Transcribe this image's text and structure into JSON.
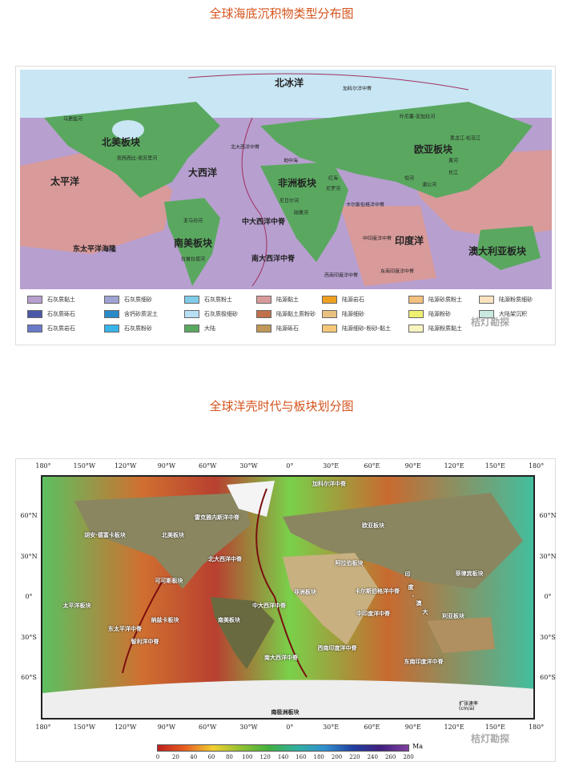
{
  "titles": {
    "map1": "全球海底沉积物类型分布图",
    "map2": "全球洋壳时代与板块划分图"
  },
  "watermark": "桔灯勘探",
  "map1": {
    "labels": {
      "arctic": "北冰洋",
      "gakkel": "加科尔洋中脊",
      "na_plate": "北美板块",
      "pacific": "太平洋",
      "atlantic": "大西洋",
      "n_atl_ridge": "北大西洋中脊",
      "africa": "非洲板块",
      "eurasia": "欧亚板块",
      "med": "地中海",
      "red_sea": "红海",
      "mid_atl": "中大西洋中脊",
      "sa_plate": "南美板块",
      "epr": "东太平洋海隆",
      "s_atl": "南大西洋中脊",
      "indian": "印度洋",
      "aus": "澳大利亚板块",
      "mackenzie": "马更些河",
      "mississippi": "密西西比-密苏里河",
      "amazon": "亚马孙河",
      "laplata": "拉普拉塔河",
      "nile": "尼罗河",
      "niger": "尼日尔河",
      "congo": "刚果河",
      "yenisei": "叶尼塞-安加拉河",
      "amur": "黑龙江-松花江",
      "yellow": "黄河",
      "yangtze": "长江",
      "ganges": "恒河",
      "mekong": "湄公河",
      "carlsberg": "卡尔斯伯格洋中脊",
      "cir": "中印度洋中脊",
      "seir": "东南印度洋中脊",
      "swir": "西南印度洋中脊"
    },
    "legend": [
      {
        "label": "石灰质黏土",
        "color": "#b79fcf"
      },
      {
        "label": "石灰质细砂",
        "color": "#9fa3d3"
      },
      {
        "label": "石灰质粉土",
        "color": "#7fcbe8"
      },
      {
        "label": "陆源黏土",
        "color": "#d99a9a"
      },
      {
        "label": "陆源岩石",
        "color": "#f0a020"
      },
      {
        "label": "陆源砂质粉土",
        "color": "#f4c07f"
      },
      {
        "label": "陆源粉质细砂",
        "color": "#fbe3c0"
      },
      {
        "label": "石灰质砾石",
        "color": "#4a5aa8"
      },
      {
        "label": "含钙砂质泥土",
        "color": "#2a8ac8"
      },
      {
        "label": "石灰质极细砂",
        "color": "#b8e0f4"
      },
      {
        "label": "陆源黏土质粉砂",
        "color": "#c0704a"
      },
      {
        "label": "陆源细砂",
        "color": "#e8c080"
      },
      {
        "label": "陆源粉砂",
        "color": "#f0f070"
      },
      {
        "label": "大陆架沉积",
        "color": "#c8e8e0"
      },
      {
        "label": "石灰质岩石",
        "color": "#6a7ac8"
      },
      {
        "label": "石灰质粉砂",
        "color": "#38b4e8"
      },
      {
        "label": "大陆",
        "color": "#5aa860"
      },
      {
        "label": "陆源砾石",
        "color": "#c09858"
      },
      {
        "label": "陆源细砂-粉砂-黏土",
        "color": "#f4c878"
      },
      {
        "label": "陆源粉质黏土",
        "color": "#f8f4c0"
      }
    ]
  },
  "map2": {
    "labels": {
      "reykjanes": "雷克雅内斯洋中脊",
      "juan": "胡安·德富卡板块",
      "na": "北美板块",
      "n_atl": "北大西洋中脊",
      "cocos": "可可斯板块",
      "pacific": "太平洋板块",
      "nazca": "纳兹卡板块",
      "epr": "东太平洋中脊",
      "chile": "智利洋中脊",
      "sa": "南美板块",
      "mid_atl": "中大西洋中脊",
      "s_atl": "南大西洋中脊",
      "antarctic": "南极洲板块",
      "gakkel": "加科尔洋中脊",
      "eurasia": "欧亚板块",
      "arabia": "阿拉伯板块",
      "africa": "非洲板块",
      "carlsberg": "卡尔斯伯格洋中脊",
      "cir": "中印度洋中脊",
      "ia1": "印",
      "ia2": "度",
      "ia3": "-",
      "ia4": "澳",
      "ia5": "大",
      "ia6": "利亚板块",
      "philippine": "菲律宾板块",
      "swir": "西南印度洋中脊",
      "seir": "东南印度洋中脊",
      "rate": "扩张速率",
      "rate_unit": "(cm/a)"
    },
    "lon_ticks": [
      "180°",
      "150°W",
      "120°W",
      "90°W",
      "60°W",
      "30°W",
      "0°",
      "30°E",
      "60°E",
      "90°E",
      "120°E",
      "150°E",
      "180°"
    ],
    "lat_ticks": [
      "60°N",
      "30°N",
      "0°",
      "30°S",
      "60°S"
    ],
    "colorbar": {
      "unit": "Ma",
      "ticks": [
        "0",
        "20",
        "40",
        "60",
        "80",
        "100",
        "120",
        "140",
        "160",
        "180",
        "200",
        "220",
        "240",
        "260",
        "280"
      ],
      "range": [
        0,
        280
      ]
    }
  }
}
